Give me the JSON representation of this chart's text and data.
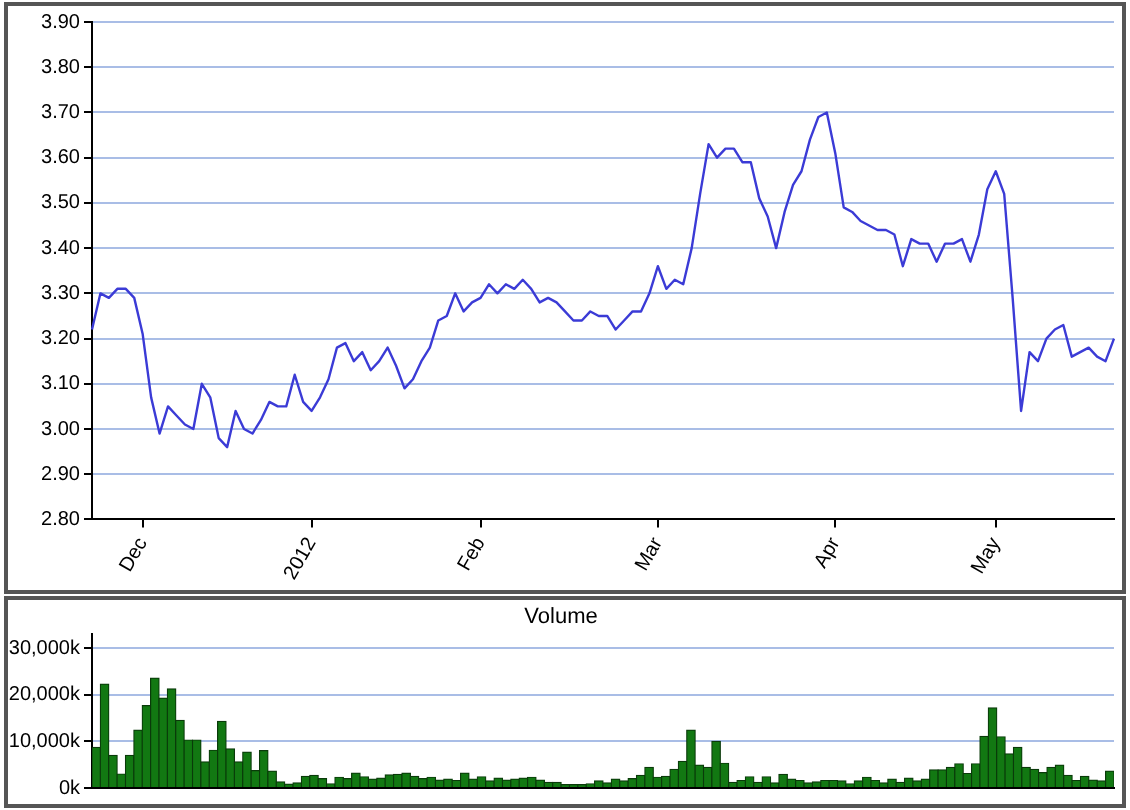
{
  "chart_data": [
    {
      "type": "line",
      "categories": [
        null,
        null,
        null,
        null,
        null,
        null,
        "Dec",
        null,
        null,
        null,
        null,
        null,
        null,
        null,
        null,
        null,
        null,
        null,
        null,
        null,
        null,
        null,
        null,
        null,
        null,
        null,
        "2012",
        null,
        null,
        null,
        null,
        null,
        null,
        null,
        null,
        null,
        null,
        null,
        null,
        null,
        null,
        null,
        null,
        null,
        null,
        null,
        "Feb",
        null,
        null,
        null,
        null,
        null,
        null,
        null,
        null,
        null,
        null,
        null,
        null,
        null,
        null,
        null,
        null,
        null,
        null,
        null,
        null,
        "Mar",
        null,
        null,
        null,
        null,
        null,
        null,
        null,
        null,
        null,
        null,
        null,
        null,
        null,
        null,
        null,
        null,
        null,
        null,
        null,
        null,
        "Apr",
        null,
        null,
        null,
        null,
        null,
        null,
        null,
        null,
        null,
        null,
        null,
        null,
        null,
        null,
        null,
        null,
        null,
        null,
        "May",
        null,
        null,
        null,
        null,
        null,
        null,
        null,
        null,
        null,
        null,
        null,
        null,
        null,
        null
      ],
      "series": [
        {
          "color": "#3b3bd6",
          "values": [
            3.22,
            3.3,
            3.29,
            3.31,
            3.31,
            3.29,
            3.21,
            3.07,
            2.99,
            3.05,
            3.03,
            3.01,
            3.0,
            3.1,
            3.07,
            2.98,
            2.96,
            3.04,
            3.0,
            2.99,
            3.02,
            3.06,
            3.05,
            3.05,
            3.12,
            3.06,
            3.04,
            3.07,
            3.11,
            3.18,
            3.19,
            3.15,
            3.17,
            3.13,
            3.15,
            3.18,
            3.14,
            3.09,
            3.11,
            3.15,
            3.18,
            3.24,
            3.25,
            3.3,
            3.26,
            3.28,
            3.29,
            3.32,
            3.3,
            3.32,
            3.31,
            3.33,
            3.31,
            3.28,
            3.29,
            3.28,
            3.26,
            3.24,
            3.24,
            3.26,
            3.25,
            3.25,
            3.22,
            3.24,
            3.26,
            3.26,
            3.3,
            3.36,
            3.31,
            3.33,
            3.32,
            3.4,
            3.52,
            3.63,
            3.6,
            3.62,
            3.62,
            3.59,
            3.59,
            3.51,
            3.47,
            3.4,
            3.48,
            3.54,
            3.57,
            3.64,
            3.69,
            3.7,
            3.61,
            3.49,
            3.48,
            3.46,
            3.45,
            3.44,
            3.44,
            3.43,
            3.36,
            3.42,
            3.41,
            3.41,
            3.37,
            3.41,
            3.41,
            3.42,
            3.37,
            3.43,
            3.53,
            3.57,
            3.52,
            3.29,
            3.04,
            3.17,
            3.15,
            3.2,
            3.22,
            3.23,
            3.16,
            3.17,
            3.18,
            3.16,
            3.15,
            3.2
          ]
        }
      ],
      "ylim": [
        2.8,
        3.9
      ],
      "yticks": [
        {
          "value": 2.8,
          "label": "2.80"
        },
        {
          "value": 2.9,
          "label": "2.90"
        },
        {
          "value": 3.0,
          "label": "3.00"
        },
        {
          "value": 3.1,
          "label": "3.10"
        },
        {
          "value": 3.2,
          "label": "3.20"
        },
        {
          "value": 3.3,
          "label": "3.30"
        },
        {
          "value": 3.4,
          "label": "3.40"
        },
        {
          "value": 3.5,
          "label": "3.50"
        },
        {
          "value": 3.6,
          "label": "3.60"
        },
        {
          "value": 3.7,
          "label": "3.70"
        },
        {
          "value": 3.8,
          "label": "3.80"
        },
        {
          "value": 3.9,
          "label": "3.90"
        }
      ],
      "grid": true,
      "marker": "none",
      "line_style": "solid"
    },
    {
      "type": "bar",
      "title": "Volume",
      "categories": [
        null,
        null,
        null,
        null,
        null,
        null,
        null,
        null,
        null,
        null,
        null,
        null,
        null,
        null,
        null,
        null,
        null,
        null,
        null,
        null,
        null,
        null,
        null,
        null,
        null,
        null,
        null,
        null,
        null,
        null,
        null,
        null,
        null,
        null,
        null,
        null,
        null,
        null,
        null,
        null,
        null,
        null,
        null,
        null,
        null,
        null,
        null,
        null,
        null,
        null,
        null,
        null,
        null,
        null,
        null,
        null,
        null,
        null,
        null,
        null,
        null,
        null,
        null,
        null,
        null,
        null,
        null,
        null,
        null,
        null,
        null,
        null,
        null,
        null,
        null,
        null,
        null,
        null,
        null,
        null,
        null,
        null,
        null,
        null,
        null,
        null,
        null,
        null,
        null,
        null,
        null,
        null,
        null,
        null,
        null,
        null,
        null,
        null,
        null,
        null,
        null,
        null,
        null,
        null,
        null,
        null,
        null,
        null,
        null,
        null,
        null,
        null,
        null,
        null,
        null,
        null,
        null,
        null,
        null,
        null,
        null,
        null
      ],
      "series": [
        {
          "color": "#127812",
          "values": [
            8700,
            22300,
            7000,
            3000,
            7000,
            12400,
            17700,
            23600,
            19300,
            21300,
            14500,
            10300,
            10300,
            5600,
            8100,
            14300,
            8400,
            5600,
            7700,
            3700,
            8000,
            3600,
            1300,
            800,
            1100,
            2500,
            2700,
            2000,
            900,
            2300,
            2000,
            3200,
            2400,
            1900,
            2100,
            2800,
            2900,
            3200,
            2500,
            2000,
            2300,
            1700,
            1900,
            1600,
            3200,
            1900,
            2400,
            1500,
            2100,
            1700,
            1900,
            2100,
            2300,
            1700,
            1200,
            1200,
            700,
            700,
            700,
            900,
            1500,
            1100,
            1900,
            1500,
            2000,
            2700,
            4400,
            2300,
            2500,
            4000,
            5700,
            12400,
            4900,
            4400,
            10000,
            5300,
            1200,
            1600,
            2400,
            1200,
            2400,
            1100,
            2900,
            1900,
            1600,
            1100,
            1300,
            1600,
            1600,
            1500,
            900,
            1500,
            2300,
            1600,
            1100,
            1900,
            1200,
            2100,
            1500,
            1900,
            3900,
            3900,
            4400,
            5200,
            3100,
            5200,
            11100,
            17200,
            11000,
            7300,
            8700,
            4400,
            4000,
            3300,
            4400,
            4900,
            2700,
            1600,
            2500,
            1700,
            1500,
            3600
          ]
        }
      ],
      "ylim": [
        0,
        33000
      ],
      "yticks": [
        {
          "value": 0,
          "label": "0k"
        },
        {
          "value": 10000,
          "label": "10,000k"
        },
        {
          "value": 20000,
          "label": "20,000k"
        },
        {
          "value": 30000,
          "label": "30,000k"
        }
      ],
      "tick_labels": "y",
      "grid": true
    }
  ]
}
